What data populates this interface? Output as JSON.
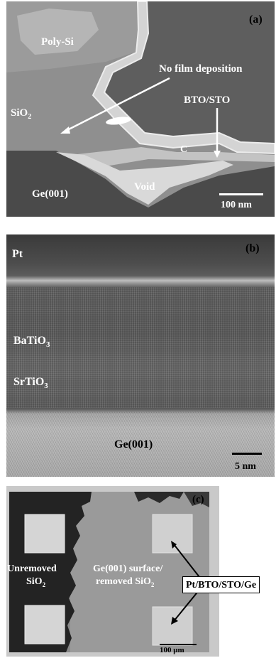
{
  "panels": {
    "a": {
      "tag": "(a)",
      "labels": {
        "poly_si": "Poly-Si",
        "no_film": "No film deposition",
        "sio2": "SiO",
        "sio2_sub": "2",
        "bto_sto": "BTO/STO",
        "c": "C",
        "ge": "Ge(001)",
        "void": "Void"
      },
      "scale_bar": "100 nm"
    },
    "b": {
      "tag": "(b)",
      "labels": {
        "pt": "Pt",
        "batio3": "BaTiO",
        "batio3_sub": "3",
        "srtio3": "SrTiO",
        "srtio3_sub": "3",
        "ge": "Ge(001)"
      },
      "scale_bar": "5 nm"
    },
    "c": {
      "tag": "(c)",
      "labels": {
        "unremoved": "Unremoved",
        "unremoved_sio": "SiO",
        "unremoved_sub": "2",
        "ge_surface": "Ge(001) surface/",
        "removed_sio": "removed SiO",
        "removed_sub": "2",
        "stack": "Pt/BTO/STO/Ge"
      },
      "scale_bar": "100 μm"
    }
  }
}
